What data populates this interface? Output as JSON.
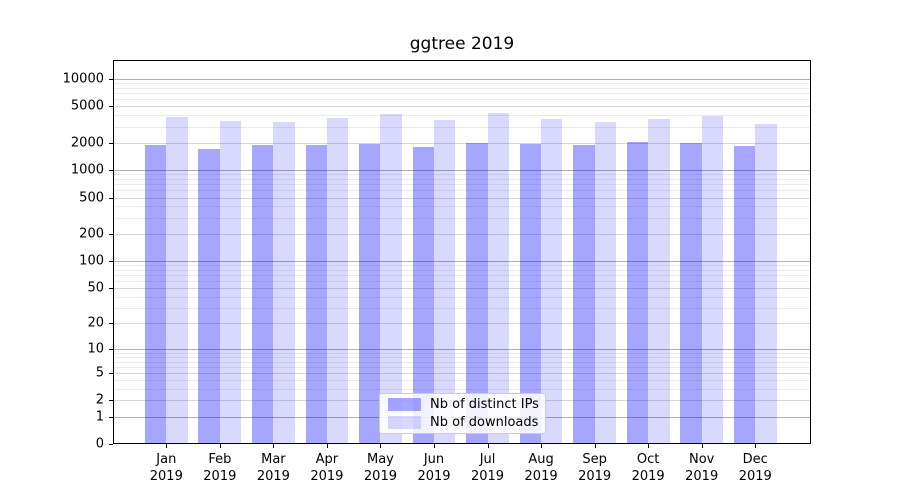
{
  "chart_data": {
    "type": "bar",
    "title": "ggtree 2019",
    "categories": [
      "Jan 2019",
      "Feb 2019",
      "Mar 2019",
      "Apr 2019",
      "May 2019",
      "Jun 2019",
      "Jul 2019",
      "Aug 2019",
      "Sep 2019",
      "Oct 2019",
      "Nov 2019",
      "Dec 2019"
    ],
    "series": [
      {
        "name": "Nb of distinct IPs",
        "color": "rgba(0,0,255,0.35)",
        "values": [
          1890,
          1720,
          1900,
          1890,
          1960,
          1810,
          2010,
          1920,
          1900,
          2040,
          1990,
          1860
        ]
      },
      {
        "name": "Nb of downloads",
        "color": "rgba(0,0,255,0.15)",
        "values": [
          3850,
          3500,
          3400,
          3750,
          4150,
          3550,
          4200,
          3650,
          3350,
          3650,
          3900,
          3250
        ]
      }
    ],
    "xlabel": "",
    "ylabel": "",
    "yscale": "log1p",
    "ylim": [
      0,
      16000
    ],
    "yticks": [
      0,
      1,
      2,
      5,
      10,
      20,
      50,
      100,
      200,
      500,
      1000,
      2000,
      5000,
      10000
    ],
    "grid": {
      "horizontal": true,
      "log_minor": true
    },
    "legend_position": "lower center",
    "style": {
      "grid_major_color": "#b0b0b0",
      "grid_mid_color": "#d7d7d7",
      "grid_minor_color": "#ebebeb",
      "axis_color": "#000000",
      "background": "#ffffff"
    }
  }
}
